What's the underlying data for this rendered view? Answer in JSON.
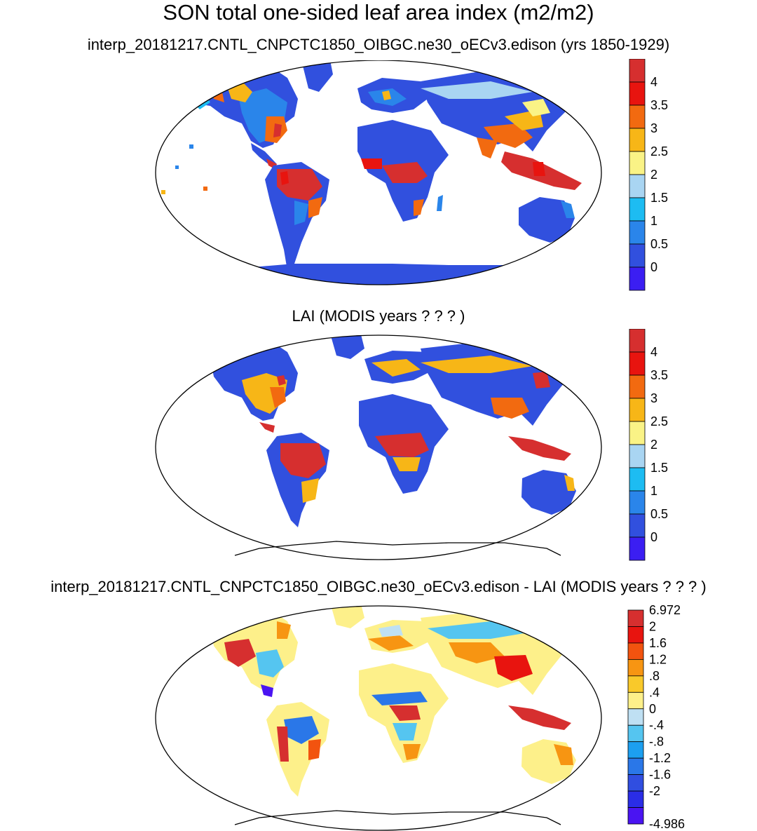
{
  "title": "SON total one-sided leaf area index (m2/m2)",
  "panels": [
    {
      "subtitle": "interp_20181217.CNTL_CNPCTC1850_OIBGC.ne30_oECv3.edison (yrs 1850-1929)",
      "kind": "model",
      "colorbar_labels": [
        "4",
        "3.5",
        "3",
        "2.5",
        "2",
        "1.5",
        "1",
        "0.5",
        "0"
      ]
    },
    {
      "subtitle": "LAI (MODIS years ? ? ? )",
      "kind": "obs",
      "colorbar_labels": [
        "4",
        "3.5",
        "3",
        "2.5",
        "2",
        "1.5",
        "1",
        "0.5",
        "0"
      ]
    },
    {
      "subtitle": "interp_20181217.CNTL_CNPCTC1850_OIBGC.ne30_oECv3.edison - LAI (MODIS years ? ? ? )",
      "kind": "diff",
      "colorbar_labels": [
        "6.972",
        "2",
        "1.6",
        "1.2",
        ".8",
        ".4",
        "0",
        "-.4",
        "-.8",
        "-1.2",
        "-1.6",
        "-2",
        "-4.986"
      ]
    }
  ],
  "colors": {
    "abs_scale": [
      "#d62f2f",
      "#e8140f",
      "#f26a10",
      "#f7b617",
      "#faf386",
      "#a9d5f2",
      "#1dbcf2",
      "#2a85ea",
      "#3150de",
      "#3b1ef2"
    ],
    "diff_scale": [
      "#d62f2f",
      "#e8140f",
      "#f2530f",
      "#f79512",
      "#f9c92a",
      "#fdf08a",
      "#bfe0f3",
      "#55c5f0",
      "#1c9ff0",
      "#2a77e8",
      "#304ee0",
      "#2a2de6",
      "#4a14f2"
    ]
  }
}
